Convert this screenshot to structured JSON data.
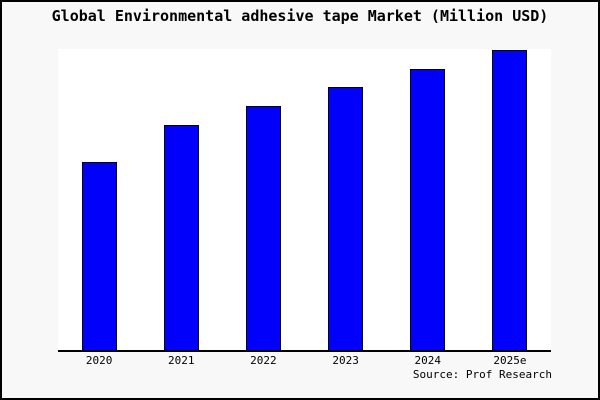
{
  "window": {
    "background_color": "#f8f8f8",
    "frame_color": "#000000"
  },
  "header": {
    "title": "Global Environmental adhesive tape Market (Million USD)"
  },
  "footer": {
    "source_label": "Source: Prof Research"
  },
  "chart_data": {
    "type": "bar",
    "title": "Global Environmental adhesive tape Market (Million USD)",
    "categories": [
      "2020",
      "2021",
      "2022",
      "2023",
      "2024",
      "2025e"
    ],
    "relative_heights_pct": [
      62.6,
      74.8,
      81.1,
      87.4,
      93.4,
      99.7
    ],
    "xlabel": "",
    "ylabel": "",
    "y_axis_tick_labels_visible": false,
    "grid": false,
    "legend": false,
    "plot_background": "#ffffff",
    "bar_color": "#0101fb",
    "bar_border_color": "#000000",
    "axis_line_color": "#000000"
  }
}
